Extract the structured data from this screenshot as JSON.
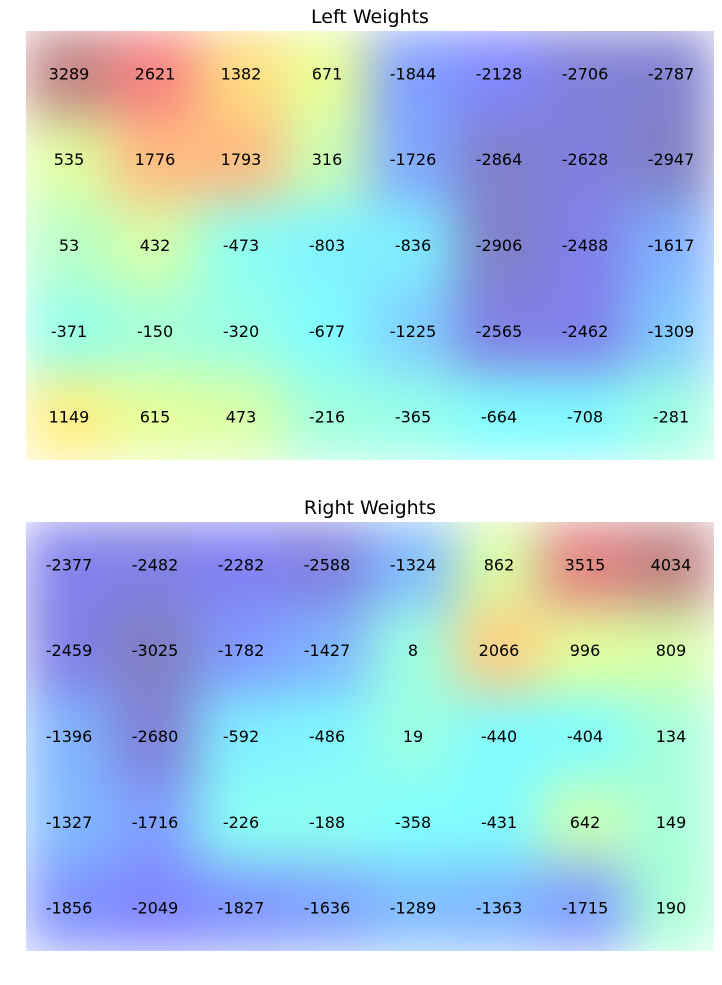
{
  "chart_data": [
    {
      "type": "heatmap",
      "title": "Left Weights",
      "rows": 5,
      "cols": 8,
      "values": [
        [
          3289,
          2621,
          1382,
          671,
          -1844,
          -2128,
          -2706,
          -2787
        ],
        [
          535,
          1776,
          1793,
          316,
          -1726,
          -2864,
          -2628,
          -2947
        ],
        [
          53,
          432,
          -473,
          -803,
          -836,
          -2906,
          -2488,
          -1617
        ],
        [
          -371,
          -150,
          -320,
          -677,
          -1225,
          -2565,
          -2462,
          -1309
        ],
        [
          1149,
          615,
          473,
          -216,
          -365,
          -664,
          -708,
          -281
        ]
      ],
      "colormap": "jet",
      "interpolated": true,
      "color_range": [
        -3000,
        3300
      ],
      "axes_visible": false
    },
    {
      "type": "heatmap",
      "title": "Right Weights",
      "rows": 5,
      "cols": 8,
      "values": [
        [
          -2377,
          -2482,
          -2282,
          -2588,
          -1324,
          862,
          3515,
          4034
        ],
        [
          -2459,
          -3025,
          -1782,
          -1427,
          8,
          2066,
          996,
          809
        ],
        [
          -1396,
          -2680,
          -592,
          -486,
          19,
          -440,
          -404,
          134
        ],
        [
          -1327,
          -1716,
          -226,
          -188,
          -358,
          -431,
          642,
          149
        ],
        [
          -1856,
          -2049,
          -1827,
          -1636,
          -1289,
          -1363,
          -1715,
          190
        ]
      ],
      "colormap": "jet",
      "interpolated": true,
      "color_range": [
        -3000,
        4000
      ],
      "axes_visible": false
    }
  ]
}
